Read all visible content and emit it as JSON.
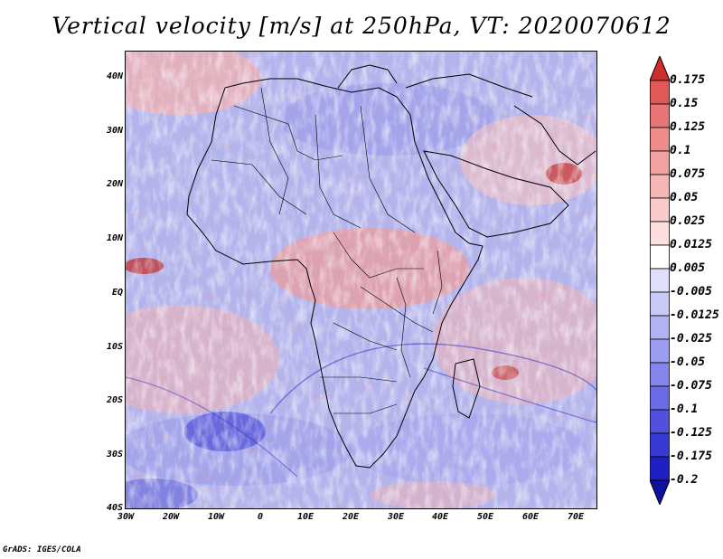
{
  "chart": {
    "title": "Vertical velocity [m/s] at 250hPa, VT: 2020070612",
    "credit": "GrADS: IGES/COLA"
  },
  "chart_data": {
    "type": "heatmap",
    "title": "Vertical velocity [m/s] at 250hPa, VT: 2020070612",
    "variable": "Vertical velocity",
    "units": "m/s",
    "level": "250hPa",
    "valid_time": "2020070612",
    "x_range": [
      -30,
      75
    ],
    "y_range": [
      -40,
      45
    ],
    "x_ticks": [
      "30W",
      "20W",
      "10W",
      "0",
      "10E",
      "20E",
      "30E",
      "40E",
      "50E",
      "60E",
      "70E"
    ],
    "x_tick_values": [
      -30,
      -20,
      -10,
      0,
      10,
      20,
      30,
      40,
      50,
      60,
      70
    ],
    "y_ticks": [
      "40N",
      "30N",
      "20N",
      "10N",
      "EQ",
      "10S",
      "20S",
      "30S",
      "40S"
    ],
    "y_tick_values": [
      40,
      30,
      20,
      10,
      0,
      -10,
      -20,
      -30,
      -40
    ],
    "colorbar": {
      "levels": [
        "0.175",
        "0.15",
        "0.125",
        "0.1",
        "0.075",
        "0.05",
        "0.025",
        "0.0125",
        "0.005",
        "-0.005",
        "-0.0125",
        "-0.025",
        "-0.05",
        "-0.075",
        "-0.1",
        "-0.125",
        "-0.175",
        "-0.2"
      ],
      "colors": [
        "#d02d2d",
        "#e05858",
        "#e87575",
        "#ee8c8c",
        "#f2a2a2",
        "#f6b6b6",
        "#f9cbcb",
        "#fce0e0",
        "#ffffff",
        "#e0e0fb",
        "#cacaf7",
        "#b3b3f4",
        "#9c9cf0",
        "#8585ec",
        "#6b6be6",
        "#5151de",
        "#3838d2",
        "#2020c2",
        "#1010a0"
      ]
    }
  }
}
